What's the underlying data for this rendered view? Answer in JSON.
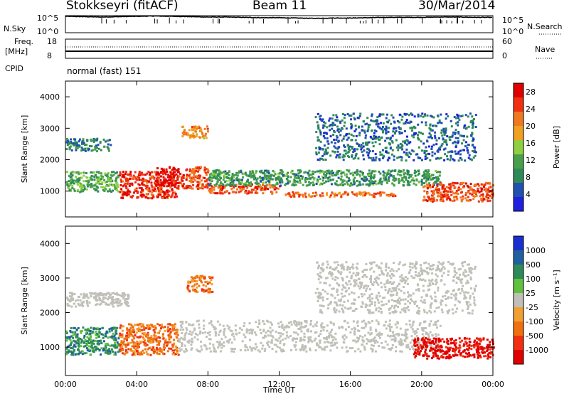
{
  "header": {
    "site": "Stokkseyri (fitACF)",
    "beam": "Beam 11",
    "date": "30/Mar/2014"
  },
  "labels": {
    "nsky": "N.Sky",
    "nsearch": "N.Search",
    "freq": "Freq.",
    "mhz": "[MHz]",
    "nave": "Nave",
    "cpid": "CPID",
    "cpid_value": "normal (fast) 151",
    "power_axis": "Power [dB]",
    "velocity_axis": "Velocity [m s⁻¹]",
    "slant_range": "Slant Range [km]",
    "time_axis": "Time UT"
  },
  "colors": {
    "frame": "#000000",
    "ground_scatter": "#c0c0b8",
    "power_scale": [
      "#2020e0",
      "#2050b0",
      "#2e8b57",
      "#4aa04a",
      "#90d040",
      "#f0a020",
      "#f07820",
      "#f03010",
      "#e00000"
    ],
    "velocity_scale": [
      "#1a2fd0",
      "#1f60a0",
      "#2e8b57",
      "#60c040",
      "#c0c0b8",
      "#f0a030",
      "#f07010",
      "#f03010",
      "#e00000"
    ]
  },
  "chart_data": [
    {
      "type": "line",
      "name": "noise-panel",
      "yticks_left": [
        "10^5",
        "10^0"
      ],
      "yticks_right": [
        "10^5",
        "10^0"
      ],
      "series": [
        {
          "name": "N.Sky",
          "x_hours": [
            0,
            1,
            2,
            3,
            4,
            5,
            6,
            7,
            8,
            9,
            10,
            11,
            12,
            13,
            14,
            15,
            16,
            17,
            18,
            19,
            20,
            21,
            22,
            23,
            24
          ],
          "values_log10": [
            4.8,
            4.7,
            4.6,
            4.7,
            4.8,
            4.9,
            4.8,
            4.7,
            4.6,
            4.6,
            4.5,
            4.4,
            4.4,
            4.3,
            4.2,
            4.3,
            4.3,
            4.4,
            4.5,
            4.5,
            4.5,
            4.6,
            4.6,
            4.5,
            4.5
          ]
        },
        {
          "name": "N.Search",
          "x_hours": [
            0,
            24
          ],
          "values_log10": [
            0.3,
            0.3
          ]
        }
      ]
    },
    {
      "type": "line",
      "name": "freq-nave-panel",
      "yticks_left": [
        "18",
        "8"
      ],
      "yticks_right": [
        "60",
        "0"
      ],
      "series": [
        {
          "name": "Freq.",
          "x_hours": [
            0,
            24
          ],
          "values": [
            10.2,
            10.2
          ]
        },
        {
          "name": "Nave",
          "x_hours": [
            0,
            24
          ],
          "values": [
            33,
            33
          ]
        }
      ]
    },
    {
      "type": "heatmap",
      "name": "power-panel",
      "xlabel": "Time UT",
      "ylabel": "Slant Range [km]",
      "xlim_hours": [
        0,
        24
      ],
      "ylim_km": [
        180,
        4500
      ],
      "xticks": [
        "00:00",
        "04:00",
        "08:00",
        "12:00",
        "16:00",
        "20:00",
        "00:00"
      ],
      "yticks": [
        1000,
        2000,
        3000,
        4000
      ],
      "colorbar": {
        "label": "Power [dB]",
        "ticks": [
          4,
          8,
          12,
          16,
          20,
          24,
          28
        ],
        "range": [
          0,
          30
        ]
      },
      "regions": [
        {
          "t": [
            0.0,
            3.0
          ],
          "r": [
            1000,
            1650
          ],
          "value": 12
        },
        {
          "t": [
            3.0,
            6.3
          ],
          "r": [
            800,
            1650
          ],
          "value": 26
        },
        {
          "t": [
            5.0,
            6.3
          ],
          "r": [
            1200,
            1800
          ],
          "value": 29
        },
        {
          "t": [
            6.3,
            8.0
          ],
          "r": [
            1100,
            1800
          ],
          "value": 24
        },
        {
          "t": [
            8.0,
            12.0
          ],
          "r": [
            950,
            1250
          ],
          "value": 24
        },
        {
          "t": [
            12.0,
            18.5
          ],
          "r": [
            850,
            1000
          ],
          "value": 22
        },
        {
          "t": [
            8.0,
            21.0
          ],
          "r": [
            1200,
            1700
          ],
          "value": 10
        },
        {
          "t": [
            20.0,
            24.0
          ],
          "r": [
            700,
            1300
          ],
          "value": 24
        },
        {
          "t": [
            0.0,
            2.5
          ],
          "r": [
            2300,
            2700
          ],
          "value": 8
        },
        {
          "t": [
            6.5,
            8.0
          ],
          "r": [
            2700,
            3100
          ],
          "value": 20
        },
        {
          "t": [
            14.0,
            23.0
          ],
          "r": [
            2000,
            3500
          ],
          "value": 6
        }
      ]
    },
    {
      "type": "heatmap",
      "name": "velocity-panel",
      "xlabel": "Time UT",
      "ylabel": "Slant Range [km]",
      "xlim_hours": [
        0,
        24
      ],
      "ylim_km": [
        180,
        4500
      ],
      "xticks": [
        "00:00",
        "04:00",
        "08:00",
        "12:00",
        "16:00",
        "20:00",
        "00:00"
      ],
      "yticks": [
        1000,
        2000,
        3000,
        4000
      ],
      "colorbar": {
        "label": "Velocity [m s⁻¹]",
        "ticks": [
          1000,
          500,
          100,
          25,
          -25,
          -100,
          -500,
          -1000
        ]
      },
      "regions": [
        {
          "t": [
            0.0,
            3.0
          ],
          "r": [
            800,
            1600
          ],
          "value": 150
        },
        {
          "t": [
            3.0,
            6.3
          ],
          "r": [
            800,
            1700
          ],
          "value": -300
        },
        {
          "t": [
            6.3,
            21.0
          ],
          "r": [
            900,
            1800
          ],
          "value": 0
        },
        {
          "t": [
            0.0,
            3.5
          ],
          "r": [
            2200,
            2600
          ],
          "value": 0
        },
        {
          "t": [
            6.8,
            8.2
          ],
          "r": [
            2600,
            3100
          ],
          "value": -400
        },
        {
          "t": [
            19.5,
            24.0
          ],
          "r": [
            700,
            1300
          ],
          "value": -700
        },
        {
          "t": [
            14.0,
            23.0
          ],
          "r": [
            2000,
            3500
          ],
          "value": 0
        }
      ]
    }
  ]
}
